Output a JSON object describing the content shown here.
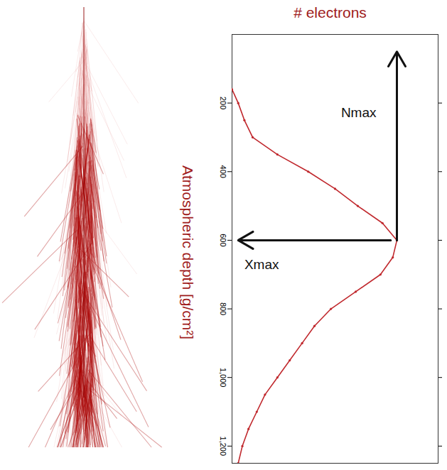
{
  "chart_data": {
    "type": "line",
    "title": "# electrons",
    "y_label": "Atmospheric depth [g/cm²]",
    "x": [
      160,
      200,
      250,
      300,
      350,
      400,
      450,
      500,
      550,
      600,
      650,
      700,
      750,
      800,
      850,
      900,
      950,
      1000,
      1050,
      1100,
      1150,
      1200,
      1250
    ],
    "values": [
      0,
      3,
      6,
      10,
      22,
      37,
      50,
      61,
      73,
      80,
      78,
      72,
      60,
      48,
      40,
      34,
      28,
      22,
      16,
      12,
      8,
      5,
      3
    ],
    "color": "#c0282d",
    "ylim": [
      0,
      1250
    ],
    "yticks": [
      200,
      400,
      600,
      800,
      1000,
      1200
    ],
    "xlim": [
      0,
      100
    ],
    "tick_labels": "y",
    "annotations": [
      {
        "text": "Nmax",
        "x": 80,
        "y": 600
      },
      {
        "text": "Xmax",
        "x": 80,
        "y": 600
      }
    ]
  }
}
